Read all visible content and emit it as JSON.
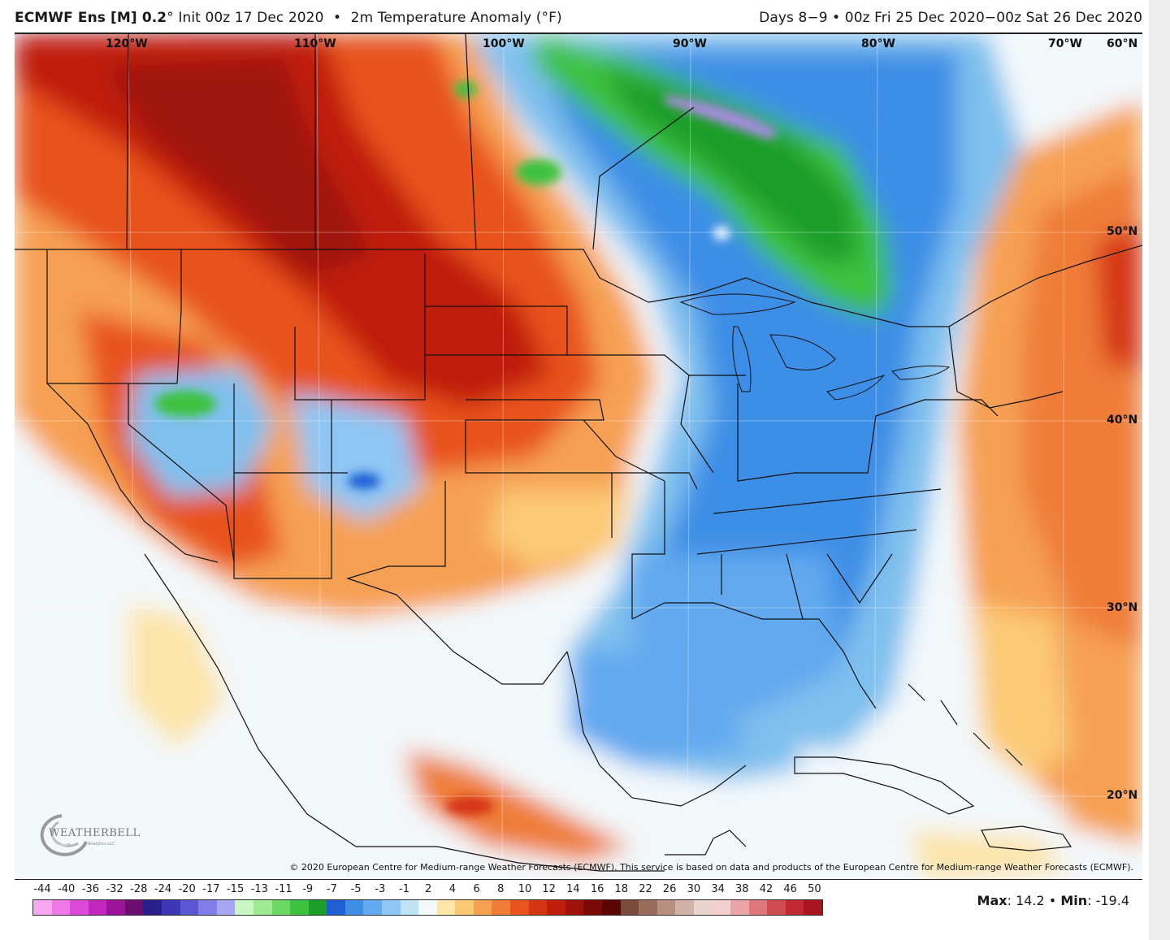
{
  "header": {
    "model": "ECMWF Ens [M] 0.2",
    "degree": "°",
    "init": "Init 00z 17 Dec 2020",
    "field": "2m Temperature Anomaly (°F)",
    "valid": "Days 8−9 • 00z Fri 25 Dec 2020−00z Sat 26 Dec 2020",
    "bullet": "•"
  },
  "map": {
    "longitude_labels": [
      "120°W",
      "110°W",
      "100°W",
      "90°W",
      "80°W",
      "70°W",
      "60°N"
    ],
    "latitude_labels": [
      "50°N",
      "40°N",
      "30°N",
      "20°N"
    ],
    "colors": {
      "warm_dark": "#c01e0c",
      "warm_mid": "#e8531f",
      "warm_light": "#f6a052",
      "warm_pale": "#fbd58a",
      "neutral": "#f3f8fb",
      "cool_pale": "#bfe3f5",
      "cool_light": "#7fc0ee",
      "cool_mid": "#3e8ee6",
      "cool_dark": "#1f5fd3",
      "green_light": "#7ee27a",
      "green_mid": "#2fba38",
      "green_dark": "#1a9a2a",
      "purple": "#a98be0"
    }
  },
  "copyright": "© 2020 European Centre for Medium-range Weather Forecasts (ECMWF). This service is based on data and products of the European Centre for Medium-range Weather Forecasts (ECMWF).",
  "logo": {
    "text": "WEATHERBELL",
    "sub": "Analytics LLC"
  },
  "legend": {
    "labels": [
      "-44",
      "-40",
      "-36",
      "-32",
      "-28",
      "-24",
      "-20",
      "-17",
      "-15",
      "-13",
      "-11",
      "-9",
      "-7",
      "-5",
      "-3",
      "-1",
      "2",
      "4",
      "6",
      "8",
      "10",
      "12",
      "14",
      "16",
      "18",
      "22",
      "26",
      "30",
      "34",
      "38",
      "42",
      "46",
      "50"
    ],
    "colors": [
      "#f7a8f0",
      "#ee78e6",
      "#dc4ad8",
      "#c126bf",
      "#9a1598",
      "#6d0d6f",
      "#2a1e8c",
      "#3c37b6",
      "#5a57d2",
      "#7f7ee6",
      "#a6a6f2",
      "#c8f7c4",
      "#9eea93",
      "#6bd864",
      "#3cc23f",
      "#1b9e2a",
      "#1f5fd3",
      "#3e8ee6",
      "#62a9ef",
      "#8ec6f4",
      "#bfe3f5",
      "#f3f8fb",
      "#fde4a8",
      "#fbc975",
      "#f6a052",
      "#ef7d37",
      "#e8531f",
      "#d63514",
      "#c01e0c",
      "#9e1208",
      "#7a0a06",
      "#5a0604",
      "#7a4a3a",
      "#9a6c5c",
      "#b78f80",
      "#d2b2a6",
      "#e8d4cc",
      "#f3cfd0",
      "#eaa3a6",
      "#dc777c",
      "#cf4b52",
      "#c22832",
      "#a81520"
    ]
  },
  "stats": {
    "max_label": "Max",
    "max_value": ": 14.2",
    "min_label": "Min",
    "min_value": ": -19.4",
    "bullet": "•"
  }
}
